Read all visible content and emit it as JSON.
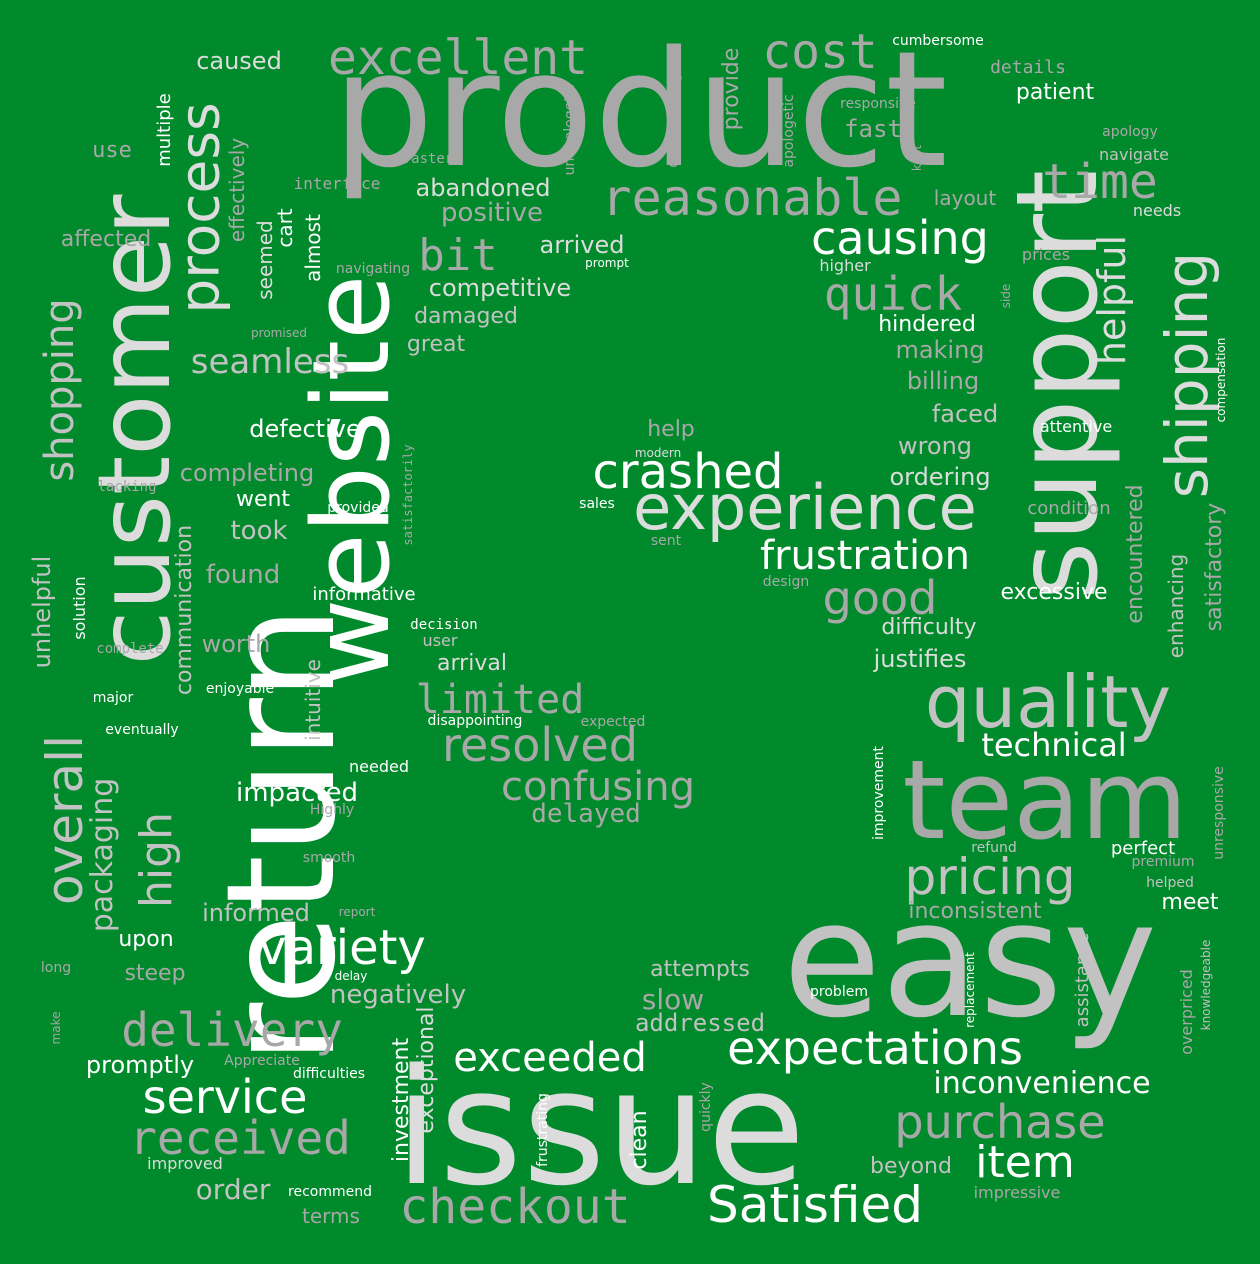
{
  "background_color": "#008a2c",
  "colors": {
    "white": "#ffffff",
    "light": "#dcdcdc",
    "mid": "#c2c2c2",
    "gray": "#a8a8a8",
    "dark": "#8f8f8f"
  },
  "words": [
    {
      "text": "product"
    },
    {
      "text": "return"
    },
    {
      "text": "customer"
    },
    {
      "text": "website"
    },
    {
      "text": "support"
    },
    {
      "text": "issue"
    },
    {
      "text": "easy"
    },
    {
      "text": "team"
    },
    {
      "text": "quality"
    },
    {
      "text": "experience"
    },
    {
      "text": "excellent"
    },
    {
      "text": "cost"
    },
    {
      "text": "process"
    },
    {
      "text": "reasonable"
    },
    {
      "text": "time"
    },
    {
      "text": "causing"
    },
    {
      "text": "quick"
    },
    {
      "text": "shipping"
    },
    {
      "text": "helpful"
    },
    {
      "text": "bit"
    },
    {
      "text": "crashed"
    },
    {
      "text": "frustration"
    },
    {
      "text": "good"
    },
    {
      "text": "shopping"
    },
    {
      "text": "overall"
    },
    {
      "text": "variety"
    },
    {
      "text": "delivery"
    },
    {
      "text": "received"
    },
    {
      "text": "service"
    },
    {
      "text": "checkout"
    },
    {
      "text": "Satisfied"
    },
    {
      "text": "expectations"
    },
    {
      "text": "purchase"
    },
    {
      "text": "item"
    },
    {
      "text": "exceeded"
    },
    {
      "text": "resolved"
    },
    {
      "text": "limited"
    },
    {
      "text": "confusing"
    },
    {
      "text": "pricing"
    },
    {
      "text": "high"
    },
    {
      "text": "packaging"
    },
    {
      "text": "inconvenience"
    },
    {
      "text": "technical"
    },
    {
      "text": "seamless"
    },
    {
      "text": "delayed"
    },
    {
      "text": "impacted"
    },
    {
      "text": "negatively"
    },
    {
      "text": "addressed"
    },
    {
      "text": "slow"
    },
    {
      "text": "attempts"
    },
    {
      "text": "order"
    },
    {
      "text": "promptly"
    },
    {
      "text": "informed"
    },
    {
      "text": "steep"
    },
    {
      "text": "upon"
    },
    {
      "text": "terms"
    },
    {
      "text": "improved"
    },
    {
      "text": "recommend"
    },
    {
      "text": "difficulties"
    },
    {
      "text": "Appreciate"
    },
    {
      "text": "delay"
    },
    {
      "text": "report"
    },
    {
      "text": "smooth"
    },
    {
      "text": "Highly"
    },
    {
      "text": "needed"
    },
    {
      "text": "intuitive"
    },
    {
      "text": "eventually"
    },
    {
      "text": "major"
    },
    {
      "text": "enjoyable"
    },
    {
      "text": "communication"
    },
    {
      "text": "complete"
    },
    {
      "text": "solution"
    },
    {
      "text": "unhelpful"
    },
    {
      "text": "worth"
    },
    {
      "text": "found"
    },
    {
      "text": "informative"
    },
    {
      "text": "took"
    },
    {
      "text": "went"
    },
    {
      "text": "completing"
    },
    {
      "text": "defective"
    },
    {
      "text": "lacking"
    },
    {
      "text": "provided"
    },
    {
      "text": "satisfactorily"
    },
    {
      "text": "decision"
    },
    {
      "text": "user"
    },
    {
      "text": "arrival"
    },
    {
      "text": "disappointing"
    },
    {
      "text": "expected"
    },
    {
      "text": "sales"
    },
    {
      "text": "sent"
    },
    {
      "text": "modern"
    },
    {
      "text": "help"
    },
    {
      "text": "design"
    },
    {
      "text": "great"
    },
    {
      "text": "damaged"
    },
    {
      "text": "competitive"
    },
    {
      "text": "arrived"
    },
    {
      "text": "prompt"
    },
    {
      "text": "navigating"
    },
    {
      "text": "almost"
    },
    {
      "text": "cart"
    },
    {
      "text": "seemed"
    },
    {
      "text": "promised"
    },
    {
      "text": "affected"
    },
    {
      "text": "use"
    },
    {
      "text": "multiple"
    },
    {
      "text": "effectively"
    },
    {
      "text": "interface"
    },
    {
      "text": "abandoned"
    },
    {
      "text": "positive"
    },
    {
      "text": "faster"
    },
    {
      "text": "unapologetic"
    },
    {
      "text": "outstanding"
    },
    {
      "text": "provide"
    },
    {
      "text": "caused"
    },
    {
      "text": "apologetic"
    },
    {
      "text": "responsive"
    },
    {
      "text": "fast"
    },
    {
      "text": "cumbersome"
    },
    {
      "text": "details"
    },
    {
      "text": "patient"
    },
    {
      "text": "apology"
    },
    {
      "text": "navigate"
    },
    {
      "text": "kept"
    },
    {
      "text": "layout"
    },
    {
      "text": "needs"
    },
    {
      "text": "prices"
    },
    {
      "text": "higher"
    },
    {
      "text": "side"
    },
    {
      "text": "hindered"
    },
    {
      "text": "making"
    },
    {
      "text": "billing"
    },
    {
      "text": "faced"
    },
    {
      "text": "attentive"
    },
    {
      "text": "compensation"
    },
    {
      "text": "wrong"
    },
    {
      "text": "ordering"
    },
    {
      "text": "condition"
    },
    {
      "text": "encountered"
    },
    {
      "text": "enhancing"
    },
    {
      "text": "satisfactory"
    },
    {
      "text": "excessive"
    },
    {
      "text": "difficulty"
    },
    {
      "text": "justifies"
    },
    {
      "text": "improvement"
    },
    {
      "text": "unresponsive"
    },
    {
      "text": "refund"
    },
    {
      "text": "perfect"
    },
    {
      "text": "premium"
    },
    {
      "text": "helped"
    },
    {
      "text": "meet"
    },
    {
      "text": "inconsistent"
    },
    {
      "text": "assistance"
    },
    {
      "text": "replacement"
    },
    {
      "text": "knowledgeable"
    },
    {
      "text": "overpriced"
    },
    {
      "text": "problem"
    },
    {
      "text": "beyond"
    },
    {
      "text": "impressive"
    },
    {
      "text": "clean"
    },
    {
      "text": "quickly"
    },
    {
      "text": "frustrating"
    },
    {
      "text": "investment"
    },
    {
      "text": "exceptional"
    },
    {
      "text": "long"
    },
    {
      "text": "make"
    }
  ]
}
